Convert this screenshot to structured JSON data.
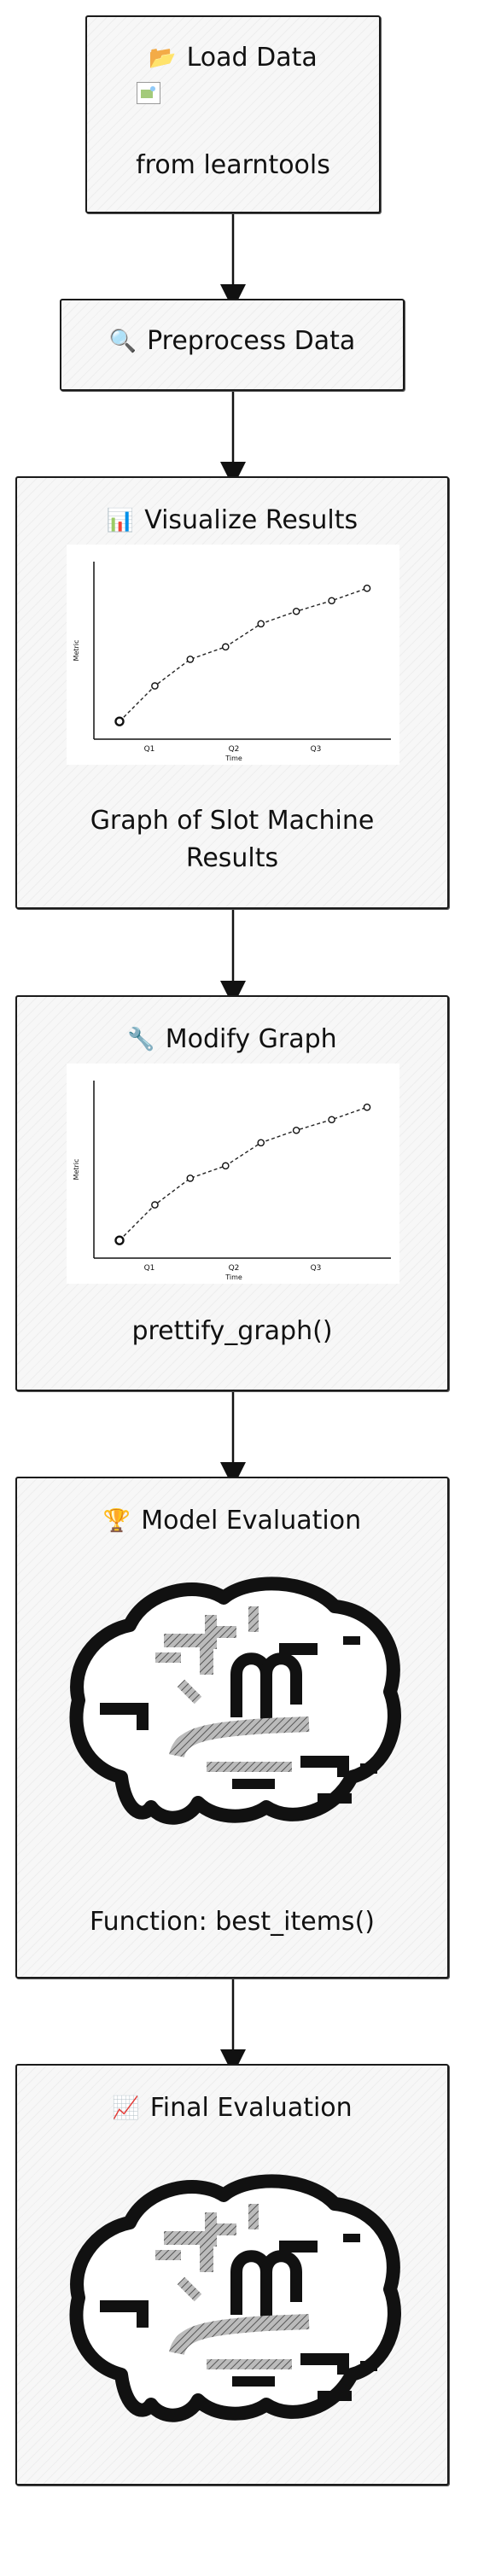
{
  "nodes": {
    "load": {
      "icon": "📂",
      "title": "Load Data",
      "caption": "from learntools"
    },
    "preprocess": {
      "icon": "🔍",
      "title": "Preprocess Data"
    },
    "visualize": {
      "icon": "📊",
      "title": "Visualize Results",
      "caption_line1": "Graph of Slot Machine",
      "caption_line2": "Results"
    },
    "modify": {
      "icon": "🔧",
      "title": "Modify Graph",
      "caption": "prettify_graph()"
    },
    "model": {
      "icon": "🏆",
      "title": "Model Evaluation",
      "caption": "Function: best_items()"
    },
    "final": {
      "icon": "📈",
      "title": "Final Evaluation"
    }
  },
  "chart_data": [
    {
      "type": "line",
      "x_tick_labels": [
        "Q1",
        "Q2",
        "Q3"
      ],
      "xlabel": "Time",
      "ylabel": "Metric",
      "x": [
        0,
        1,
        2,
        3,
        4,
        5,
        6,
        7
      ],
      "y": [
        0.1,
        0.3,
        0.45,
        0.52,
        0.65,
        0.72,
        0.78,
        0.85
      ],
      "ylim": [
        0,
        1
      ],
      "grid": false
    },
    {
      "type": "line",
      "x_tick_labels": [
        "Q1",
        "Q2",
        "Q3"
      ],
      "xlabel": "Time",
      "ylabel": "Metric",
      "x": [
        0,
        1,
        2,
        3,
        4,
        5,
        6,
        7
      ],
      "y": [
        0.1,
        0.3,
        0.45,
        0.52,
        0.65,
        0.72,
        0.78,
        0.85
      ],
      "ylim": [
        0,
        1
      ],
      "grid": false
    }
  ],
  "images": {
    "brain": "brain-icon",
    "broken": "broken-image-icon"
  }
}
